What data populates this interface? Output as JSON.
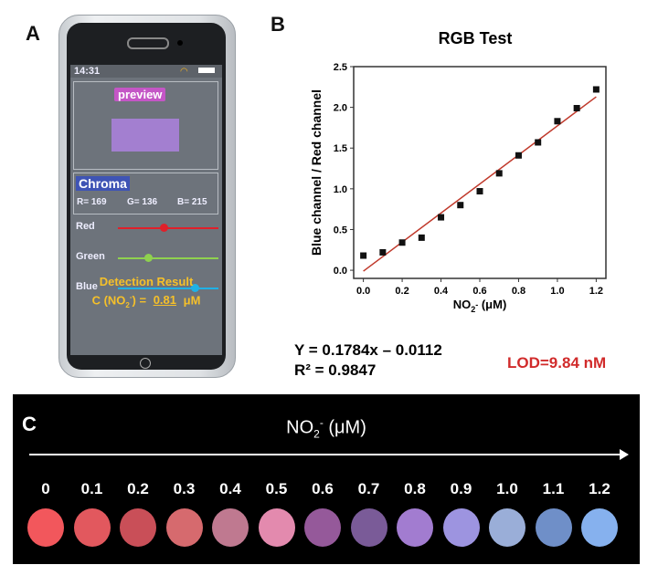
{
  "panel_labels": {
    "a": "A",
    "b": "B",
    "c": "C"
  },
  "phone": {
    "time": "14:31",
    "preview_label": "preview",
    "preview_color": "#a37fd0",
    "chroma_label": "Chroma",
    "r": "R= 169",
    "g": "G= 136",
    "b": "B= 215",
    "sliders": [
      {
        "label": "Red",
        "value": 0.45,
        "color": "#e0202a"
      },
      {
        "label": "Green",
        "value": 0.3,
        "color": "#8fd14f"
      },
      {
        "label": "Blue",
        "value": 0.76,
        "color": "#1fb1e6"
      }
    ],
    "result_title": "Detection Result",
    "result_prefix": "C (NO",
    "result_sub": "2",
    "result_sup": "-",
    "result_mid": ") = ",
    "result_value": "0.81",
    "result_unit": "μM"
  },
  "chart_data": {
    "type": "scatter",
    "title": "RGB Test",
    "xlabel": "NO2- (μM)",
    "xlabel_main": "NO",
    "xlabel_sub": "2",
    "xlabel_sup": "-",
    "xlabel_unit": " (μM)",
    "ylabel": "Blue channel / Red channel",
    "xlim": [
      -0.05,
      1.25
    ],
    "ylim": [
      -0.1,
      2.5
    ],
    "xticks": [
      "0.0",
      "0.2",
      "0.4",
      "0.6",
      "0.8",
      "1.0",
      "1.2"
    ],
    "yticks": [
      "0.0",
      "0.5",
      "1.0",
      "1.5",
      "2.0",
      "2.5"
    ],
    "x": [
      0,
      0.1,
      0.2,
      0.3,
      0.4,
      0.5,
      0.6,
      0.7,
      0.8,
      0.9,
      1.0,
      1.1,
      1.2
    ],
    "y": [
      0.18,
      0.22,
      0.34,
      0.4,
      0.65,
      0.8,
      0.97,
      1.19,
      1.41,
      1.57,
      1.83,
      1.99,
      2.22
    ],
    "fit": {
      "slope": 0.1784,
      "intercept": -0.0112,
      "color": "#c0392b",
      "note": "line drawn as reported slope scaled to data"
    },
    "equation": "Y = 0.1784x – 0.0112",
    "r2": "R² = 0.9847",
    "lod": "LOD=9.84 nM"
  },
  "strip": {
    "title_main": "NO",
    "title_sub": "2",
    "title_sup": "-",
    "title_unit": " (μM)",
    "labels": [
      "0",
      "0.1",
      "0.2",
      "0.3",
      "0.4",
      "0.5",
      "0.6",
      "0.7",
      "0.8",
      "0.9",
      "1.0",
      "1.1",
      "1.2"
    ],
    "colors": [
      "#f2575c",
      "#e2585e",
      "#c94f58",
      "#d66a6e",
      "#bf7990",
      "#e38aae",
      "#95599a",
      "#7a5b98",
      "#a27cd0",
      "#9d94e0",
      "#9aaed8",
      "#6f8fc8",
      "#86b1ee"
    ]
  }
}
